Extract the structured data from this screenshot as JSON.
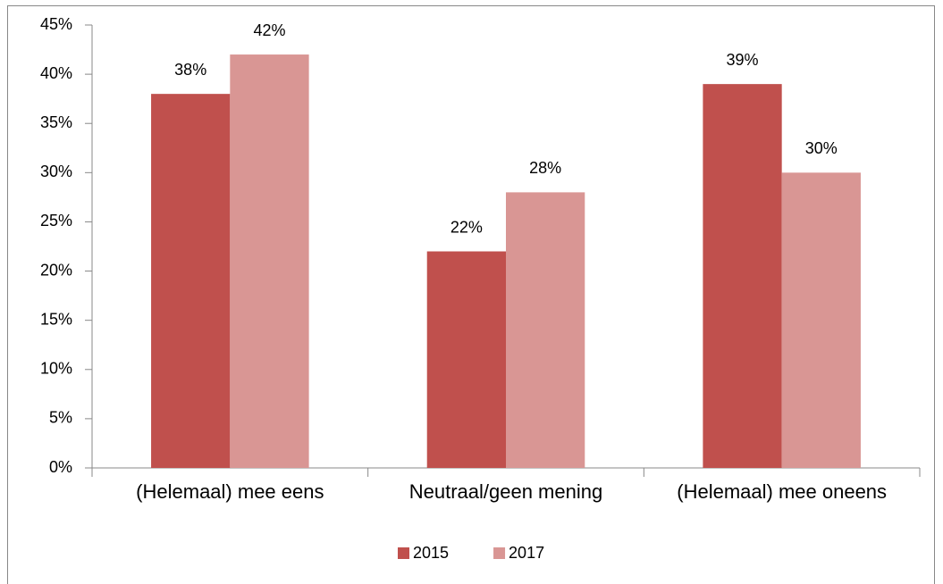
{
  "chart_data": {
    "type": "bar",
    "categories": [
      "(Helemaal) mee eens",
      "Neutraal/geen mening",
      "(Helemaal) mee oneens"
    ],
    "series": [
      {
        "name": "2015",
        "color": "#c0504d",
        "values": [
          38,
          22,
          39
        ],
        "value_labels": [
          "38%",
          "22%",
          "39%"
        ]
      },
      {
        "name": "2017",
        "color": "#d99694",
        "values": [
          42,
          28,
          30
        ],
        "value_labels": [
          "42%",
          "28%",
          "30%"
        ]
      }
    ],
    "ylim": [
      0,
      45
    ],
    "yticks": [
      {
        "value": 0,
        "label": "0%"
      },
      {
        "value": 5,
        "label": "5%"
      },
      {
        "value": 10,
        "label": "10%"
      },
      {
        "value": 15,
        "label": "15%"
      },
      {
        "value": 20,
        "label": "20%"
      },
      {
        "value": 25,
        "label": "25%"
      },
      {
        "value": 30,
        "label": "30%"
      },
      {
        "value": 35,
        "label": "35%"
      },
      {
        "value": 40,
        "label": "40%"
      },
      {
        "value": 45,
        "label": "45%"
      }
    ],
    "legend": "bottom"
  }
}
